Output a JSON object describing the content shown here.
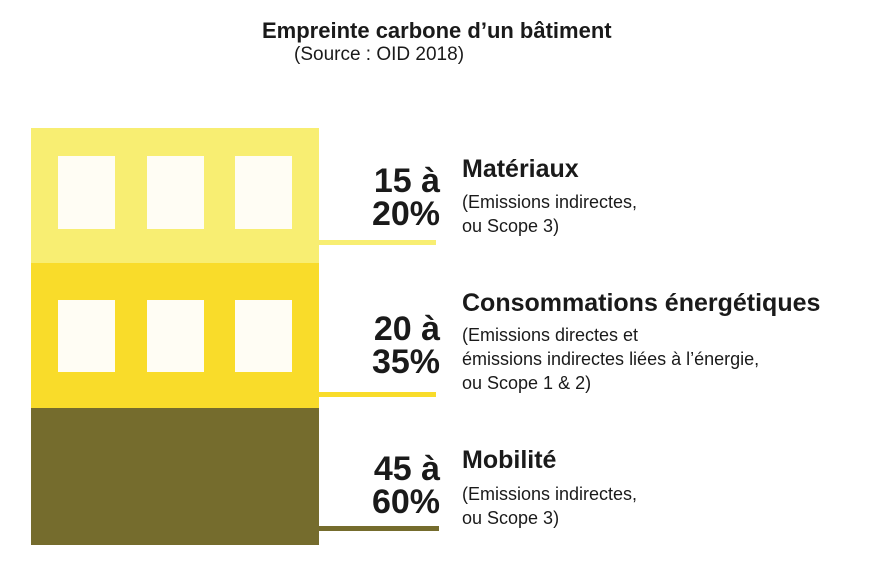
{
  "header": {
    "title": "Empreinte carbone d’un bâtiment",
    "source": "(Source : OID 2018)"
  },
  "categories": [
    {
      "range_line1": "15 à",
      "range_line2": "20%",
      "name": "Matériaux",
      "desc": [
        "(Emissions indirectes,",
        "ou Scope 3)"
      ],
      "color": "#f8ee72"
    },
    {
      "range_line1": "20 à",
      "range_line2": "35%",
      "name": "Consommations énergétiques",
      "desc": [
        "(Emissions directes et",
        "émissions indirectes liées à l’énergie,",
        "ou Scope 1 & 2)"
      ],
      "color": "#f9dc2a"
    },
    {
      "range_line1": "45 à",
      "range_line2": "60%",
      "name": "Mobilité",
      "desc": [
        "(Emissions indirectes,",
        "ou Scope 3)"
      ],
      "color": "#756c2d"
    }
  ]
}
